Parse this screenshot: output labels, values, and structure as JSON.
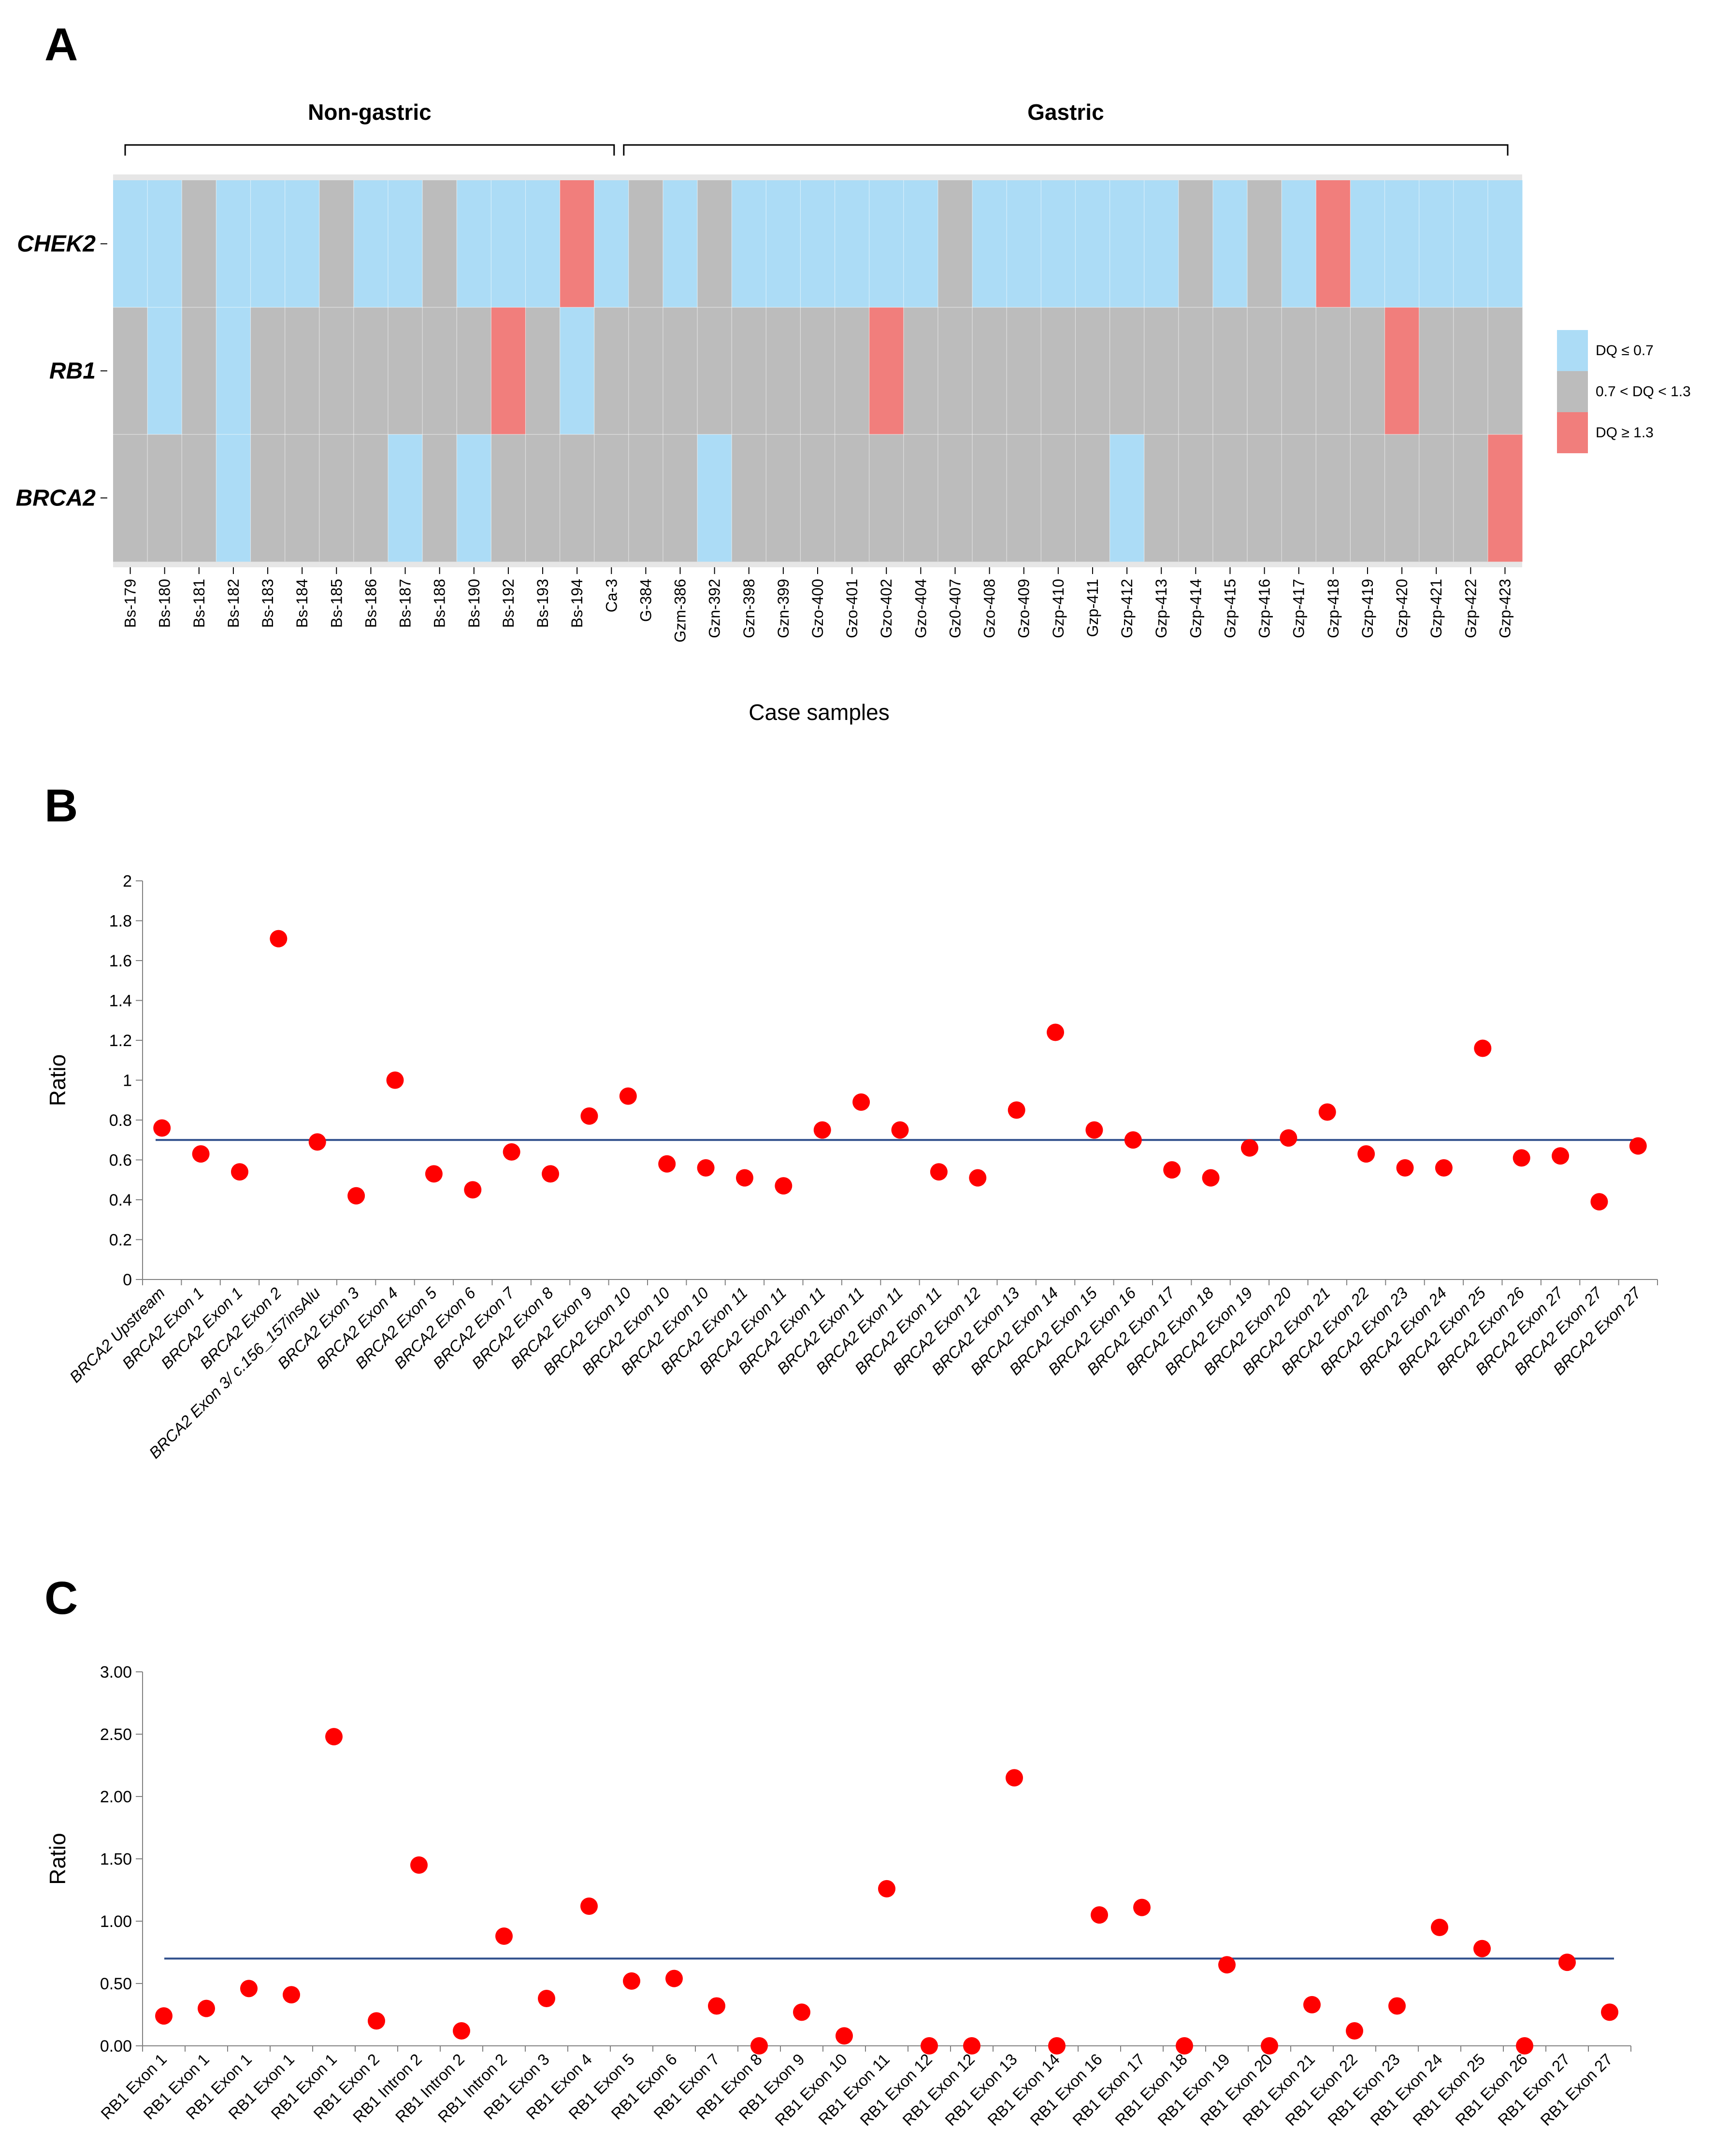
{
  "colors": {
    "low": "#acdcf6",
    "mid": "#bcbcbc",
    "high": "#f17e7c",
    "point": "#ff0000",
    "refline": "#2f4f8c"
  },
  "panels": {
    "a": "A",
    "b": "B",
    "c": "C"
  },
  "chart_data": [
    {
      "type": "heatmap",
      "groups": [
        {
          "label": "Non-gastric",
          "from": 0,
          "to": 14
        },
        {
          "label": "Gastric",
          "from": 15,
          "to": 40
        }
      ],
      "rows": [
        "CHEK2",
        "RB1",
        "BRCA2"
      ],
      "columns": [
        "Bs-179",
        "Bs-180",
        "Bs-181",
        "Bs-182",
        "Bs-183",
        "Bs-184",
        "Bs-185",
        "Bs-186",
        "Bs-187",
        "Bs-188",
        "Bs-190",
        "Bs-192",
        "Bs-193",
        "Bs-194",
        "Ca-3",
        "G-384",
        "Gzm-386",
        "Gzn-392",
        "Gzn-398",
        "Gzn-399",
        "Gzo-400",
        "Gzo-401",
        "Gzo-402",
        "Gzo-404",
        "Gz0-407",
        "Gzo-408",
        "Gzo-409",
        "Gzp-410",
        "Gzp-411",
        "Gzp-412",
        "Gzp-413",
        "Gzp-414",
        "Gzp-415",
        "Gzp-416",
        "Gzp-417",
        "Gzp-418",
        "Gzp-419",
        "Gzp-420",
        "Gzp-421",
        "Gzp-422",
        "Gzp-423"
      ],
      "categories_legend": [
        "DQ ≤ 0.7",
        "0.7 < DQ < 1.3",
        "DQ ≥ 1.3"
      ],
      "values": [
        [
          0,
          0,
          1,
          0,
          0,
          0,
          1,
          0,
          0,
          1,
          0,
          0,
          0,
          2,
          0,
          1,
          0,
          1,
          0,
          0,
          0,
          0,
          0,
          0,
          1,
          0,
          0,
          0,
          0,
          0,
          0,
          1,
          0,
          1,
          0,
          2,
          0,
          0,
          0,
          0,
          0
        ],
        [
          1,
          0,
          1,
          0,
          1,
          1,
          1,
          1,
          1,
          1,
          1,
          2,
          1,
          0,
          1,
          1,
          1,
          1,
          1,
          1,
          1,
          1,
          2,
          1,
          1,
          1,
          1,
          1,
          1,
          1,
          1,
          1,
          1,
          1,
          1,
          1,
          1,
          2,
          1,
          1,
          1
        ],
        [
          1,
          1,
          1,
          0,
          1,
          1,
          1,
          1,
          0,
          1,
          0,
          1,
          1,
          1,
          1,
          1,
          1,
          0,
          1,
          1,
          1,
          1,
          1,
          1,
          1,
          1,
          1,
          1,
          1,
          0,
          1,
          1,
          1,
          1,
          1,
          1,
          1,
          1,
          1,
          1,
          2
        ]
      ],
      "xlabel": "Case samples"
    },
    {
      "type": "scatter",
      "categories": [
        "BRCA2 Upstream",
        "BRCA2 Exon 1",
        "BRCA2 Exon 1",
        "BRCA2 Exon 2",
        "BRCA2 Exon 3/ c.156_157insAlu",
        "BRCA2 Exon 3",
        "BRCA2 Exon 4",
        "BRCA2 Exon 5",
        "BRCA2 Exon 6",
        "BRCA2 Exon 7",
        "BRCA2 Exon 8",
        "BRCA2 Exon 9",
        "BRCA2 Exon 10",
        "BRCA2 Exon 10",
        "BRCA2 Exon 10",
        "BRCA2 Exon 11",
        "BRCA2 Exon 11",
        "BRCA2 Exon 11",
        "BRCA2 Exon 11",
        "BRCA2 Exon 11",
        "BRCA2 Exon 11",
        "BRCA2 Exon 12",
        "BRCA2 Exon 13",
        "BRCA2 Exon 14",
        "BRCA2 Exon 15",
        "BRCA2 Exon 16",
        "BRCA2 Exon 17",
        "BRCA2 Exon 18",
        "BRCA2 Exon 19",
        "BRCA2 Exon 20",
        "BRCA2 Exon 21",
        "BRCA2 Exon 22",
        "BRCA2 Exon 23",
        "BRCA2 Exon 24",
        "BRCA2 Exon 25",
        "BRCA2 Exon 26",
        "BRCA2 Exon 27",
        "BRCA2 Exon 27",
        "BRCA2 Exon 27"
      ],
      "values": [
        0.76,
        0.63,
        0.54,
        1.71,
        0.69,
        0.42,
        1.0,
        0.53,
        0.45,
        0.64,
        0.53,
        0.82,
        0.92,
        0.58,
        0.56,
        0.51,
        0.47,
        0.75,
        0.89,
        0.75,
        0.54,
        0.51,
        0.85,
        1.24,
        0.75,
        0.7,
        0.55,
        0.51,
        0.66,
        0.71,
        0.84,
        0.63,
        0.56,
        0.56,
        1.16,
        0.61,
        0.62,
        0.39,
        0.67
      ],
      "reference_line": 0.7,
      "yticks": [
        "0",
        "0.2",
        "0.4",
        "0.6",
        "0.8",
        "1",
        "1.2",
        "1.4",
        "1.6",
        "1.8",
        "2"
      ],
      "ylim": [
        0,
        2
      ],
      "ylabel": "Ratio"
    },
    {
      "type": "scatter",
      "categories": [
        "RB1 Exon 1",
        "RB1 Exon 1",
        "RB1 Exon 1",
        "RB1 Exon 1",
        "RB1 Exon 1",
        "RB1 Exon 2",
        "RB1 Intron 2",
        "RB1 Intron 2",
        "RB1 Intron 2",
        "RB1 Exon 3",
        "RB1 Exon 4",
        "RB1 Exon 5",
        "RB1 Exon 6",
        "RB1 Exon 7",
        "RB1 Exon 8",
        "RB1 Exon 9",
        "RB1 Exon 10",
        "RB1 Exon 11",
        "RB1 Exon 12",
        "RB1 Exon 12",
        "RB1 Exon 13",
        "RB1 Exon 14",
        "RB1 Exon 16",
        "RB1 Exon 17",
        "RB1 Exon 18",
        "RB1 Exon 19",
        "RB1 Exon 20",
        "RB1 Exon 21",
        "RB1 Exon 22",
        "RB1 Exon 23",
        "RB1 Exon 24",
        "RB1 Exon 25",
        "RB1 Exon 26",
        "RB1 Exon 27",
        "RB1 Exon 27"
      ],
      "values": [
        0.24,
        0.3,
        0.46,
        0.41,
        2.48,
        0.2,
        1.45,
        0.12,
        0.88,
        0.38,
        1.12,
        0.52,
        0.54,
        0.32,
        0.0,
        0.27,
        0.08,
        1.26,
        0.0,
        0.0,
        2.15,
        0.0,
        1.05,
        1.11,
        0.0,
        0.65,
        0.0,
        0.33,
        0.12,
        0.32,
        0.95,
        0.78,
        0.0,
        0.67,
        0.27
      ],
      "reference_line": 0.7,
      "yticks": [
        "0.00",
        "0.50",
        "1.00",
        "1.50",
        "2.00",
        "2.50",
        "3.00"
      ],
      "ylim": [
        0,
        3
      ],
      "ylabel": "Ratio"
    }
  ]
}
